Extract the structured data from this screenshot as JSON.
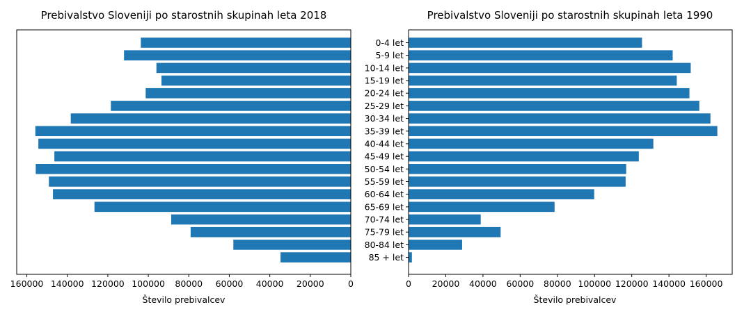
{
  "figure": {
    "bar_color": "#1f77b4",
    "axis_color": "#000000",
    "category_labels": [
      "0-4 let",
      "5-9 let",
      "10-14 let",
      "15-19 let",
      "20-24 let",
      "25-29 let",
      "30-34 let",
      "35-39 let",
      "40-44 let",
      "45-49 let",
      "50-54 let",
      "55-59 let",
      "60-64 let",
      "65-69 let",
      "70-74 let",
      "75-79 let",
      "80-84 let",
      "85 + let"
    ]
  },
  "chart_data": [
    {
      "type": "bar",
      "orientation": "horizontal",
      "x_inverted": true,
      "title": "Prebivalstvo Sloveniji po starostnih skupinah leta 2018",
      "xlabel": "Število prebivalcev",
      "ylabel": "",
      "categories": [
        "0-4 let",
        "5-9 let",
        "10-14 let",
        "15-19 let",
        "20-24 let",
        "25-29 let",
        "30-34 let",
        "35-39 let",
        "40-44 let",
        "45-49 let",
        "50-54 let",
        "55-59 let",
        "60-64 let",
        "65-69 let",
        "70-74 let",
        "75-79 let",
        "80-84 let",
        "85 + let"
      ],
      "values": [
        103700,
        112000,
        96000,
        93500,
        101300,
        118500,
        138300,
        155800,
        154300,
        146400,
        155600,
        149100,
        147100,
        126600,
        88700,
        79100,
        58000,
        34700
      ],
      "xlim": [
        0,
        165000
      ],
      "xticks": [
        160000,
        140000,
        120000,
        100000,
        80000,
        60000,
        40000,
        20000,
        0
      ],
      "grid": false
    },
    {
      "type": "bar",
      "orientation": "horizontal",
      "x_inverted": false,
      "title": "Prebivalstvo Sloveniji po starostnih skupinah leta 1990",
      "xlabel": "Število prebivalcev",
      "ylabel": "",
      "categories": [
        "0-4 let",
        "5-9 let",
        "10-14 let",
        "15-19 let",
        "20-24 let",
        "25-29 let",
        "30-34 let",
        "35-39 let",
        "40-44 let",
        "45-49 let",
        "50-54 let",
        "55-59 let",
        "60-64 let",
        "65-69 let",
        "70-74 let",
        "75-79 let",
        "80-84 let",
        "85 + let"
      ],
      "values": [
        125500,
        142000,
        151700,
        144200,
        151000,
        156300,
        162300,
        166000,
        131600,
        123800,
        117000,
        116700,
        99800,
        78500,
        38800,
        49500,
        28800,
        1800
      ],
      "xlim": [
        0,
        174000
      ],
      "xticks": [
        0,
        20000,
        40000,
        60000,
        80000,
        100000,
        120000,
        140000,
        160000
      ],
      "grid": false
    }
  ]
}
